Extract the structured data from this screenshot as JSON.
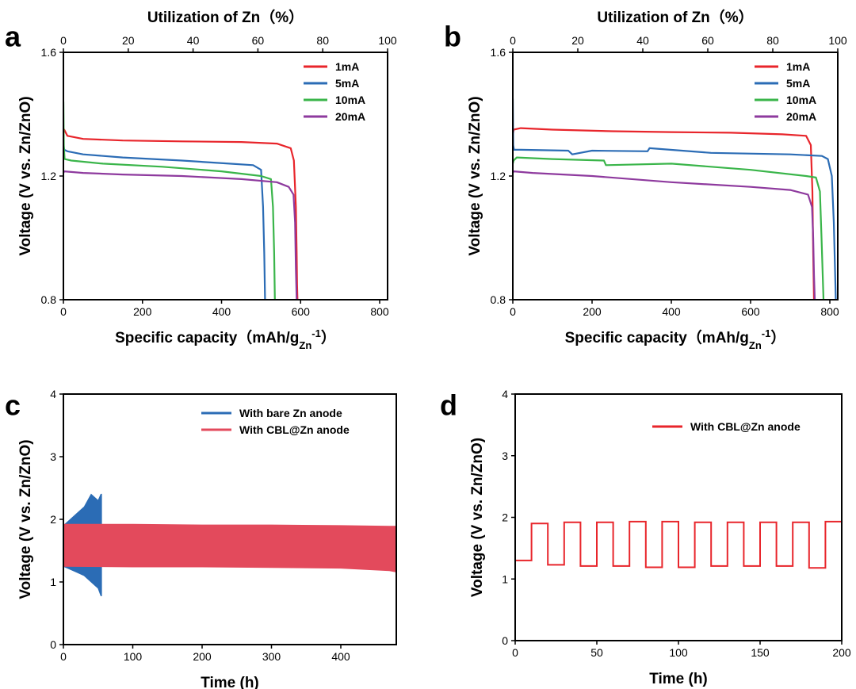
{
  "chart_data": [
    {
      "panel": "a",
      "type": "line",
      "xlabel": "Specific capacity（mAh/g",
      "xlabel_sub": "Zn",
      "xlabel_sup": "-1",
      "xlabel_end": "）",
      "ylabel": "Voltage (V vs. Zn/ZnO)",
      "x2label": "Utilization of Zn（%）",
      "xlim": [
        0,
        820
      ],
      "ylim": [
        0.8,
        1.6
      ],
      "x2lim": [
        0,
        100
      ],
      "xticks": [
        "0",
        "200",
        "400",
        "600",
        "800"
      ],
      "yticks": [
        "0.8",
        "1.2",
        "1.6"
      ],
      "x2ticks": [
        "0",
        "20",
        "40",
        "60",
        "80",
        "100"
      ],
      "legend": "top-right",
      "series": [
        {
          "name": "1mA",
          "color": "#e8252b",
          "x": [
            0,
            2,
            10,
            50,
            150,
            300,
            450,
            540,
            575,
            583,
            588,
            590,
            591,
            592
          ],
          "y": [
            1.34,
            1.35,
            1.33,
            1.32,
            1.315,
            1.312,
            1.31,
            1.305,
            1.29,
            1.25,
            1.1,
            0.95,
            0.85,
            0.8
          ]
        },
        {
          "name": "5mA",
          "color": "#2b6cb5",
          "x": [
            0,
            2,
            10,
            50,
            150,
            300,
            420,
            480,
            500,
            505,
            508,
            510
          ],
          "y": [
            1.3,
            1.285,
            1.28,
            1.27,
            1.26,
            1.25,
            1.24,
            1.235,
            1.22,
            1.1,
            0.95,
            0.8
          ]
        },
        {
          "name": "10mA",
          "color": "#3ab54a",
          "x": [
            0,
            1,
            3,
            20,
            100,
            250,
            400,
            500,
            525,
            530,
            533,
            535
          ],
          "y": [
            1.44,
            1.3,
            1.255,
            1.25,
            1.24,
            1.23,
            1.215,
            1.2,
            1.19,
            1.1,
            0.95,
            0.8
          ]
        },
        {
          "name": "20mA",
          "color": "#8e3a9e",
          "x": [
            0,
            2,
            50,
            150,
            300,
            450,
            540,
            570,
            582,
            586,
            588,
            590
          ],
          "y": [
            1.21,
            1.215,
            1.21,
            1.205,
            1.2,
            1.19,
            1.18,
            1.165,
            1.14,
            1.05,
            0.9,
            0.8
          ]
        }
      ]
    },
    {
      "panel": "b",
      "type": "line",
      "xlabel": "Specific capacity（mAh/g",
      "xlabel_sub": "Zn",
      "xlabel_sup": "-1",
      "xlabel_end": "）",
      "ylabel": "Voltage (V vs. Zn/ZnO)",
      "x2label": "Utilization of Zn（%）",
      "xlim": [
        0,
        820
      ],
      "ylim": [
        0.8,
        1.6
      ],
      "x2lim": [
        0,
        100
      ],
      "xticks": [
        "0",
        "200",
        "400",
        "600",
        "800"
      ],
      "yticks": [
        "0.8",
        "1.2",
        "1.6"
      ],
      "x2ticks": [
        "0",
        "20",
        "40",
        "60",
        "80",
        "100"
      ],
      "legend": "top-right",
      "series": [
        {
          "name": "1mA",
          "color": "#e8252b",
          "x": [
            0,
            2,
            20,
            100,
            250,
            400,
            550,
            680,
            740,
            752,
            756,
            758,
            760
          ],
          "y": [
            1.33,
            1.35,
            1.355,
            1.35,
            1.345,
            1.342,
            1.34,
            1.335,
            1.33,
            1.3,
            1.15,
            0.95,
            0.8
          ]
        },
        {
          "name": "5mA",
          "color": "#2b6cb5",
          "x": [
            0,
            1,
            3,
            20,
            100,
            140,
            150,
            200,
            340,
            345,
            500,
            700,
            780,
            795,
            805,
            810,
            813,
            815
          ],
          "y": [
            1.45,
            1.3,
            1.285,
            1.285,
            1.283,
            1.282,
            1.27,
            1.282,
            1.28,
            1.29,
            1.275,
            1.27,
            1.265,
            1.255,
            1.2,
            1.05,
            0.9,
            0.8
          ]
        },
        {
          "name": "10mA",
          "color": "#3ab54a",
          "x": [
            0,
            2,
            10,
            100,
            230,
            235,
            400,
            600,
            740,
            765,
            775,
            779,
            782,
            784
          ],
          "y": [
            1.24,
            1.25,
            1.26,
            1.255,
            1.25,
            1.235,
            1.24,
            1.22,
            1.2,
            1.195,
            1.15,
            1.0,
            0.88,
            0.8
          ]
        },
        {
          "name": "20mA",
          "color": "#8e3a9e",
          "x": [
            0,
            2,
            50,
            200,
            400,
            600,
            700,
            745,
            755,
            758,
            760,
            762
          ],
          "y": [
            1.21,
            1.215,
            1.21,
            1.2,
            1.18,
            1.165,
            1.155,
            1.14,
            1.1,
            1.0,
            0.88,
            0.8
          ]
        }
      ]
    },
    {
      "panel": "c",
      "type": "line",
      "xlabel": "Time (h)",
      "ylabel": "Voltage (V vs. Zn/ZnO)",
      "xlim": [
        0,
        480
      ],
      "ylim": [
        0,
        4
      ],
      "xticks": [
        "0",
        "100",
        "200",
        "300",
        "400"
      ],
      "yticks": [
        "0",
        "1",
        "2",
        "3",
        "4"
      ],
      "legend": "top-right",
      "series": [
        {
          "name": "With bare Zn anode",
          "color": "#2b6cb5",
          "kind": "band",
          "x": [
            0,
            10,
            20,
            30,
            40,
            45,
            50,
            54,
            55
          ],
          "upper": [
            1.9,
            2.0,
            2.1,
            2.2,
            2.4,
            2.35,
            2.3,
            2.4,
            2.4
          ],
          "lower": [
            1.25,
            1.2,
            1.15,
            1.1,
            1.0,
            0.95,
            0.9,
            0.78,
            0.78
          ]
        },
        {
          "name": "With CBL@Zn anode",
          "color": "#e34a5c",
          "kind": "band",
          "x": [
            0,
            100,
            200,
            300,
            400,
            470,
            480
          ],
          "upper": [
            1.92,
            1.92,
            1.91,
            1.91,
            1.9,
            1.89,
            1.89
          ],
          "lower": [
            1.25,
            1.24,
            1.24,
            1.23,
            1.22,
            1.18,
            1.16
          ]
        }
      ]
    },
    {
      "panel": "d",
      "type": "line",
      "xlabel": "Time (h)",
      "ylabel": "Voltage (V vs. Zn/ZnO)",
      "xlim": [
        0,
        200
      ],
      "ylim": [
        0,
        4
      ],
      "xticks": [
        "0",
        "50",
        "100",
        "150",
        "200"
      ],
      "yticks": [
        "0",
        "1",
        "2",
        "3",
        "4"
      ],
      "legend": "top-right",
      "series": [
        {
          "name": "With CBL@Zn anode",
          "color": "#e8252b",
          "kind": "square",
          "segments": [
            [
              0,
              10,
              1.3
            ],
            [
              10,
              20,
              1.9
            ],
            [
              20,
              30,
              1.23
            ],
            [
              30,
              40,
              1.92
            ],
            [
              40,
              50,
              1.21
            ],
            [
              50,
              60,
              1.92
            ],
            [
              60,
              70,
              1.21
            ],
            [
              70,
              80,
              1.93
            ],
            [
              80,
              90,
              1.19
            ],
            [
              90,
              100,
              1.93
            ],
            [
              100,
              110,
              1.19
            ],
            [
              110,
              120,
              1.92
            ],
            [
              120,
              130,
              1.21
            ],
            [
              130,
              140,
              1.92
            ],
            [
              140,
              150,
              1.21
            ],
            [
              150,
              160,
              1.92
            ],
            [
              160,
              170,
              1.21
            ],
            [
              170,
              180,
              1.92
            ],
            [
              180,
              190,
              1.18
            ],
            [
              190,
              200,
              1.93
            ]
          ]
        }
      ]
    }
  ]
}
